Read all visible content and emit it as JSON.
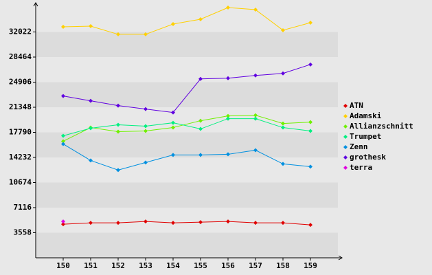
{
  "chart_data": {
    "type": "line",
    "x": [
      150,
      151,
      152,
      153,
      154,
      155,
      156,
      157,
      158,
      159
    ],
    "xlim": [
      149,
      160
    ],
    "xticks": [
      150,
      151,
      152,
      153,
      154,
      155,
      156,
      157,
      158,
      159
    ],
    "ylim": [
      0,
      35580
    ],
    "yticks": [
      3558,
      7116,
      10674,
      14232,
      17790,
      21348,
      24906,
      28464,
      32022
    ],
    "grid": true,
    "legend": "right",
    "series": [
      {
        "name": "ATN",
        "color": "#e00000",
        "values": [
          4763,
          4957,
          4957,
          5152,
          4957,
          5054,
          5152,
          4957,
          4957,
          4666
        ]
      },
      {
        "name": "Adamski",
        "color": "#ffd000",
        "values": [
          32756,
          32853,
          31687,
          31687,
          33145,
          33825,
          35478,
          35186,
          32270,
          33339
        ]
      },
      {
        "name": "Allianzschnitt",
        "color": "#70f000",
        "values": [
          16524,
          18468,
          17885,
          17982,
          18468,
          19440,
          20120,
          20218,
          19051,
          19246
        ]
      },
      {
        "name": "Trumpet",
        "color": "#00f080",
        "values": [
          17302,
          18371,
          18857,
          18662,
          19148,
          18274,
          19732,
          19732,
          18468,
          17982
        ]
      },
      {
        "name": "Zenn",
        "color": "#0090e0",
        "values": [
          16135,
          13802,
          12442,
          13511,
          14580,
          14580,
          14677,
          15260,
          13316,
          12928
        ]
      },
      {
        "name": "grothesk",
        "color": "#6000e0",
        "values": [
          22939,
          22259,
          21578,
          21092,
          20606,
          25369,
          25466,
          25855,
          26147,
          27410
        ]
      },
      {
        "name": "terra",
        "color": "#e000e0",
        "values": [
          5152,
          null,
          null,
          null,
          null,
          null,
          null,
          null,
          null,
          null
        ]
      }
    ]
  }
}
